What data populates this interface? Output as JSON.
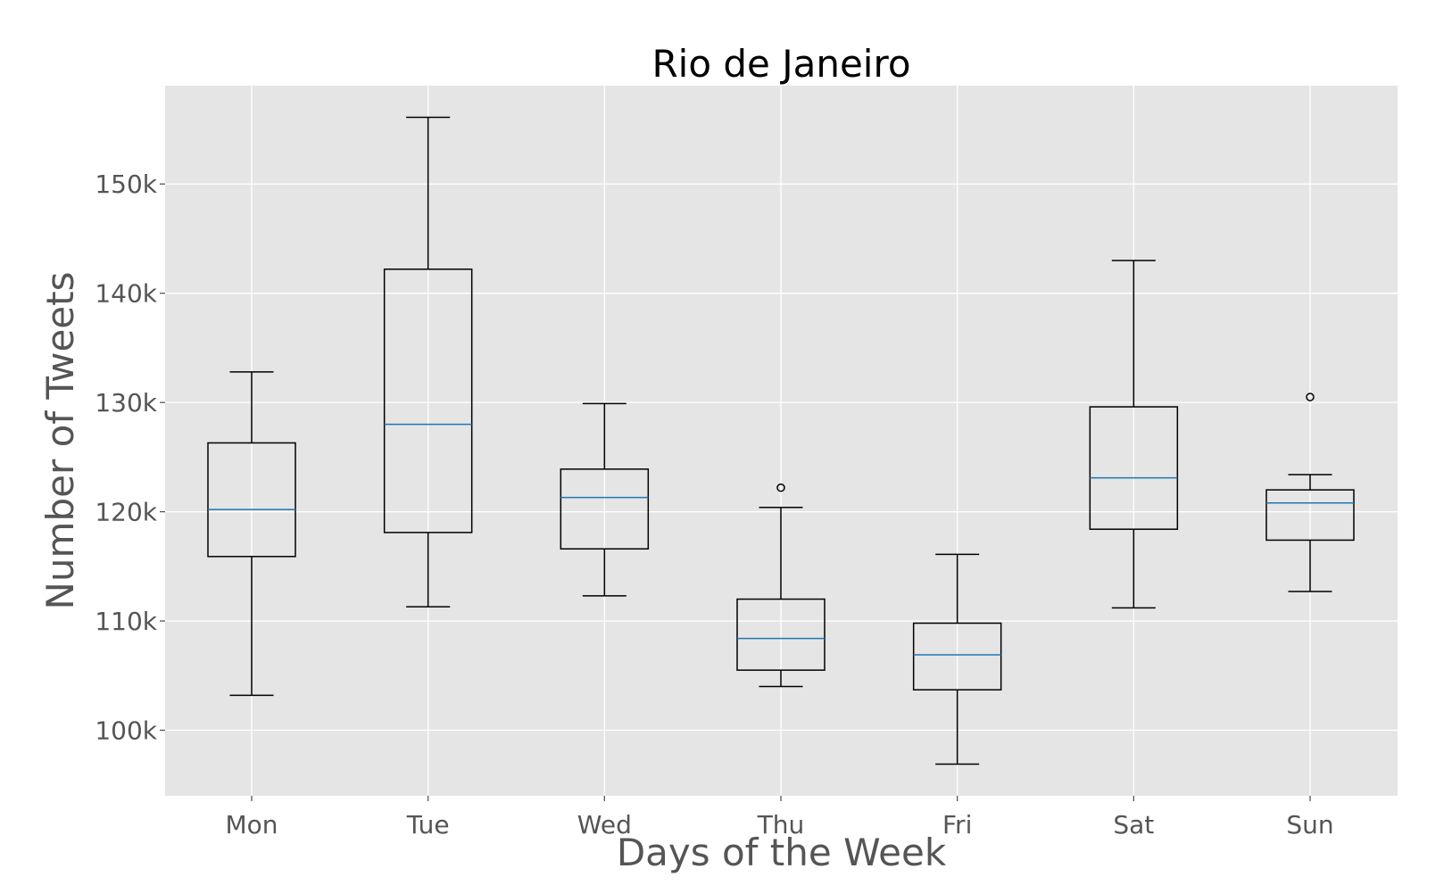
{
  "chart_data": {
    "type": "box",
    "title": "Rio de Janeiro",
    "xlabel": "Days of the Week",
    "ylabel": "Number of Tweets",
    "categories": [
      "Mon",
      "Tue",
      "Wed",
      "Thu",
      "Fri",
      "Sat",
      "Sun"
    ],
    "y_ticks": [
      100000,
      110000,
      120000,
      130000,
      140000,
      150000
    ],
    "y_tick_labels": [
      "100k",
      "110k",
      "120k",
      "130k",
      "140k",
      "150k"
    ],
    "ylim": [
      94000,
      159000
    ],
    "grid": true,
    "style": "ggplot",
    "colors": {
      "plot_background": "#e5e5e5",
      "grid": "#ffffff",
      "box_edge": "#000000",
      "median": "#1f77b4",
      "text": "#555555"
    },
    "boxes": [
      {
        "category": "Mon",
        "whisker_low": 103200,
        "q1": 115900,
        "median": 120200,
        "q3": 126300,
        "whisker_high": 132800,
        "outliers": []
      },
      {
        "category": "Tue",
        "whisker_low": 111300,
        "q1": 118100,
        "median": 128000,
        "q3": 142200,
        "whisker_high": 156100,
        "outliers": []
      },
      {
        "category": "Wed",
        "whisker_low": 112300,
        "q1": 116600,
        "median": 121300,
        "q3": 123900,
        "whisker_high": 129900,
        "outliers": []
      },
      {
        "category": "Thu",
        "whisker_low": 104000,
        "q1": 105500,
        "median": 108400,
        "q3": 112000,
        "whisker_high": 120400,
        "outliers": [
          122200
        ]
      },
      {
        "category": "Fri",
        "whisker_low": 96900,
        "q1": 103700,
        "median": 106900,
        "q3": 109800,
        "whisker_high": 116100,
        "outliers": []
      },
      {
        "category": "Sat",
        "whisker_low": 111200,
        "q1": 118400,
        "median": 123100,
        "q3": 129600,
        "whisker_high": 143000,
        "outliers": []
      },
      {
        "category": "Sun",
        "whisker_low": 112700,
        "q1": 117400,
        "median": 120800,
        "q3": 122000,
        "whisker_high": 123400,
        "outliers": [
          130500
        ]
      }
    ]
  }
}
